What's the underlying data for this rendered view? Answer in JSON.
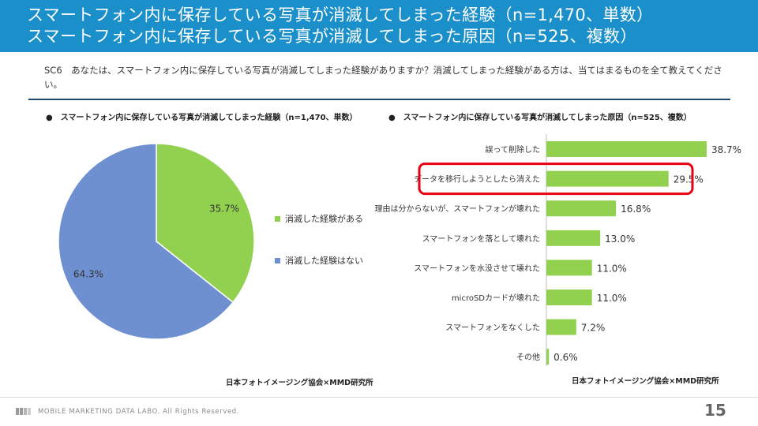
{
  "header": {
    "title_line1": "スマートフォン内に保存している写真が消滅してしまった経験（n=1,470、単数）",
    "title_line2": "スマートフォン内に保存している写真が消滅してしまった原因（n=525、複数）"
  },
  "question": "SC6　あなたは、スマートフォン内に保存している写真が消滅してしまった経験がありますか？消滅してしまった経験がある方は、当てはまるものを全て教えてください。",
  "left_panel": {
    "title": "●　スマートフォン内に保存している写真が消滅してしまった経験（n=1,470、単数）",
    "source": "日本フォトイメージング協会×MMD研究所"
  },
  "right_panel": {
    "title": "●　スマートフォン内に保存している写真が消滅してしまった原因（n=525、複数）",
    "source": "日本フォトイメージング協会×MMD研究所"
  },
  "chart_data": [
    {
      "type": "pie",
      "title": "スマートフォン内に保存している写真が消滅してしまった経験（n=1,470、単数）",
      "slices": [
        {
          "label": "消滅した経験がある",
          "value": 35.7,
          "display": "35.7%",
          "color": "#92d050"
        },
        {
          "label": "消滅した経験はない",
          "value": 64.3,
          "display": "64.3%",
          "color": "#6e8fd0"
        }
      ],
      "legend_position": "right"
    },
    {
      "type": "bar",
      "orientation": "horizontal",
      "title": "スマートフォン内に保存している写真が消滅してしまった原因（n=525、複数）",
      "categories": [
        "誤って削除した",
        "データを移行しようとしたら消えた",
        "理由は分からないが、スマートフォンが壊れた",
        "スマートフォンを落として壊れた",
        "スマートフォンを水没させて壊れた",
        "microSDカードが壊れた",
        "スマートフォンをなくした",
        "その他"
      ],
      "values": [
        38.7,
        29.5,
        16.8,
        13.0,
        11.0,
        11.0,
        7.2,
        0.6
      ],
      "value_labels": [
        "38.7%",
        "29.5%",
        "16.8%",
        "13.0%",
        "11.0%",
        "11.0%",
        "7.2%",
        "0.6%"
      ],
      "highlighted_category": "データを移行しようとしたら消えた",
      "color": "#92d050",
      "highlight_color": "#e60012",
      "xlim": [
        0,
        45
      ]
    }
  ],
  "footer": {
    "company": "MOBILE MARKETING DATA LABO.  All Rights Reserved.",
    "page_number": "15"
  }
}
